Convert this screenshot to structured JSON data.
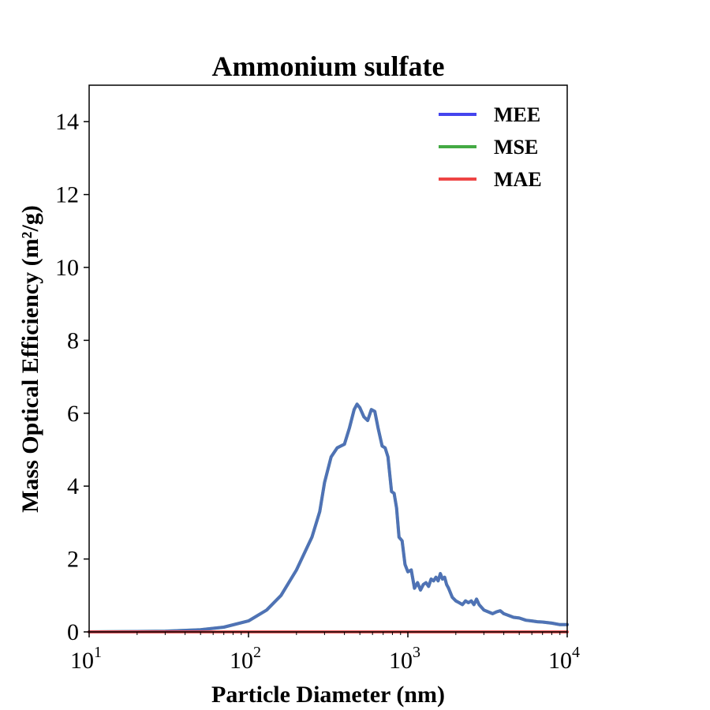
{
  "chart_data": {
    "type": "line",
    "title": "Ammonium sulfate",
    "xlabel": "Particle Diameter (nm)",
    "ylabel": "Mass Optical Efficiency (m²/g)",
    "xscale": "log",
    "xlim": [
      10,
      10000
    ],
    "ylim": [
      0,
      15
    ],
    "x_ticks": [
      {
        "base": "10",
        "exp": "1",
        "value": 10
      },
      {
        "base": "10",
        "exp": "2",
        "value": 100
      },
      {
        "base": "10",
        "exp": "3",
        "value": 1000
      },
      {
        "base": "10",
        "exp": "4",
        "value": 10000
      }
    ],
    "y_ticks": [
      "0",
      "2",
      "4",
      "6",
      "8",
      "10",
      "12",
      "14"
    ],
    "grid": false,
    "legend_position": "top-right",
    "series": [
      {
        "name": "MEE",
        "color": "#4444ee",
        "x": [
          10,
          20,
          30,
          50,
          70,
          100,
          130,
          160,
          200,
          250,
          280,
          300,
          330,
          360,
          400,
          430,
          460,
          480,
          500,
          530,
          560,
          590,
          620,
          650,
          690,
          720,
          750,
          790,
          820,
          850,
          880,
          920,
          960,
          1000,
          1050,
          1100,
          1150,
          1200,
          1250,
          1300,
          1350,
          1400,
          1450,
          1500,
          1550,
          1600,
          1650,
          1700,
          1750,
          1800,
          1900,
          2000,
          2100,
          2200,
          2300,
          2400,
          2500,
          2600,
          2700,
          2800,
          3000,
          3200,
          3400,
          3600,
          3800,
          4000,
          4300,
          4600,
          5000,
          5500,
          6000,
          6500,
          7000,
          8000,
          9000,
          10000
        ],
        "y": [
          0.0,
          0.01,
          0.02,
          0.06,
          0.13,
          0.3,
          0.6,
          1.0,
          1.7,
          2.6,
          3.3,
          4.1,
          4.8,
          5.05,
          5.15,
          5.6,
          6.1,
          6.25,
          6.15,
          5.9,
          5.8,
          6.1,
          6.05,
          5.6,
          5.1,
          5.05,
          4.8,
          3.85,
          3.8,
          3.4,
          2.6,
          2.5,
          1.85,
          1.65,
          1.7,
          1.2,
          1.35,
          1.15,
          1.3,
          1.35,
          1.25,
          1.45,
          1.4,
          1.5,
          1.4,
          1.6,
          1.45,
          1.5,
          1.3,
          1.2,
          0.95,
          0.85,
          0.8,
          0.75,
          0.85,
          0.8,
          0.85,
          0.75,
          0.9,
          0.75,
          0.6,
          0.55,
          0.5,
          0.55,
          0.58,
          0.5,
          0.45,
          0.4,
          0.38,
          0.32,
          0.3,
          0.28,
          0.27,
          0.24,
          0.2,
          0.2
        ]
      },
      {
        "name": "MSE",
        "color": "#44aa44",
        "x": [
          10,
          20,
          30,
          50,
          70,
          100,
          130,
          160,
          200,
          250,
          280,
          300,
          330,
          360,
          400,
          430,
          460,
          480,
          500,
          530,
          560,
          590,
          620,
          650,
          690,
          720,
          750,
          790,
          820,
          850,
          880,
          920,
          960,
          1000,
          1050,
          1100,
          1150,
          1200,
          1250,
          1300,
          1350,
          1400,
          1450,
          1500,
          1550,
          1600,
          1650,
          1700,
          1750,
          1800,
          1900,
          2000,
          2100,
          2200,
          2300,
          2400,
          2500,
          2600,
          2700,
          2800,
          3000,
          3200,
          3400,
          3600,
          3800,
          4000,
          4300,
          4600,
          5000,
          5500,
          6000,
          6500,
          7000,
          8000,
          9000,
          10000
        ],
        "y": [
          0.0,
          0.01,
          0.02,
          0.06,
          0.13,
          0.3,
          0.6,
          1.0,
          1.7,
          2.6,
          3.3,
          4.1,
          4.8,
          5.05,
          5.15,
          5.6,
          6.1,
          6.25,
          6.15,
          5.9,
          5.8,
          6.1,
          6.05,
          5.6,
          5.1,
          5.05,
          4.8,
          3.85,
          3.8,
          3.4,
          2.6,
          2.5,
          1.85,
          1.65,
          1.7,
          1.2,
          1.35,
          1.15,
          1.3,
          1.35,
          1.25,
          1.45,
          1.4,
          1.5,
          1.4,
          1.6,
          1.45,
          1.5,
          1.3,
          1.2,
          0.95,
          0.85,
          0.8,
          0.75,
          0.85,
          0.8,
          0.85,
          0.75,
          0.9,
          0.75,
          0.6,
          0.55,
          0.5,
          0.55,
          0.58,
          0.5,
          0.45,
          0.4,
          0.38,
          0.32,
          0.3,
          0.28,
          0.27,
          0.24,
          0.2,
          0.2
        ]
      },
      {
        "name": "MAE",
        "color": "#ee4444",
        "x": [
          10,
          10000
        ],
        "y": [
          0.0,
          0.0
        ]
      }
    ]
  }
}
